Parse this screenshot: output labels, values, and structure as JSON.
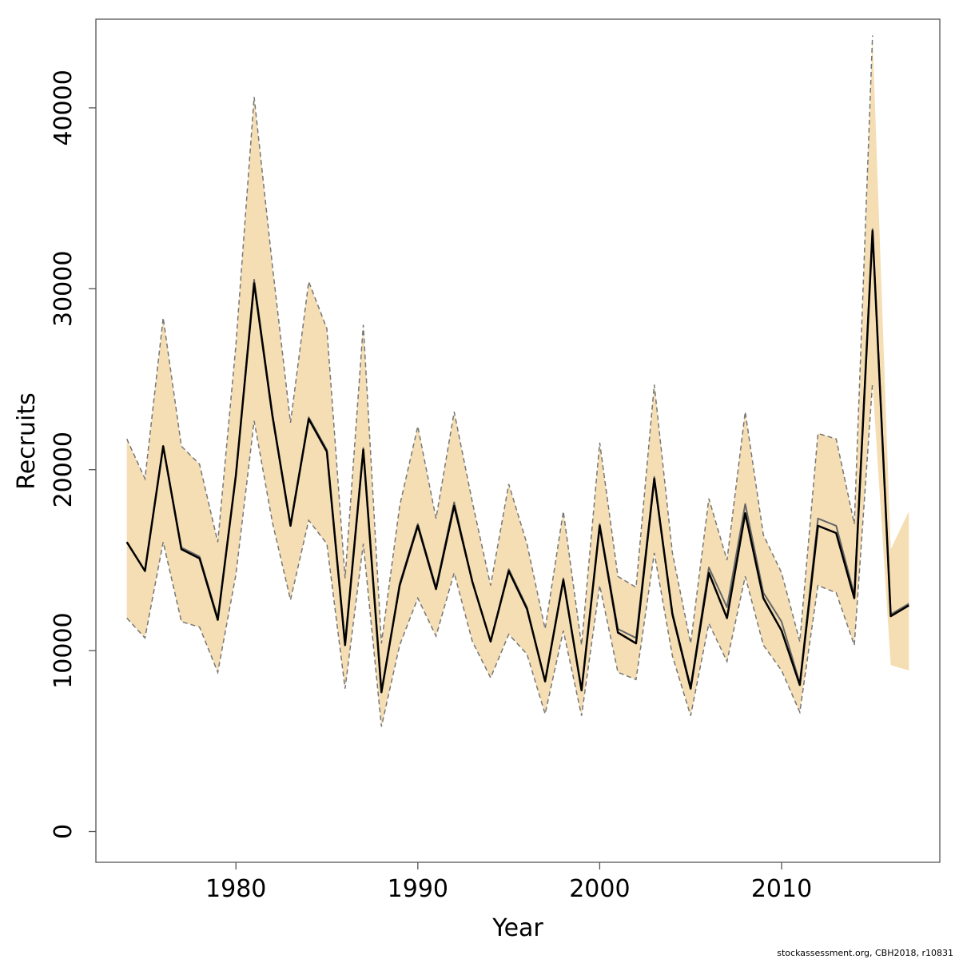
{
  "chart_data": {
    "type": "line",
    "title": "",
    "xlabel": "Year",
    "ylabel": "Recruits",
    "xlim": [
      1972.3,
      2018.7
    ],
    "ylim": [
      -1700,
      44900
    ],
    "x_ticks": [
      1980,
      1990,
      2000,
      2010
    ],
    "y_ticks": [
      0,
      10000,
      20000,
      30000,
      40000
    ],
    "grid": false,
    "band_color": "#f5deb3",
    "line_color": "#000000",
    "x": [
      1974,
      1975,
      1976,
      1977,
      1978,
      1979,
      1980,
      1981,
      1982,
      1983,
      1984,
      1985,
      1986,
      1987,
      1988,
      1989,
      1990,
      1991,
      1992,
      1993,
      1994,
      1995,
      1996,
      1997,
      1998,
      1999,
      2000,
      2001,
      2002,
      2003,
      2004,
      2005,
      2006,
      2007,
      2008,
      2009,
      2010,
      2011,
      2012,
      2013,
      2014,
      2015,
      2016,
      2017
    ],
    "series": [
      {
        "values": [
          16000,
          14400,
          21300,
          15600,
          15100,
          11700,
          19700,
          30300,
          23000,
          16900,
          22800,
          21000,
          10300,
          21100,
          7700,
          13600,
          16900,
          13400,
          18000,
          13800,
          10500,
          14400,
          12300,
          8300,
          13900,
          7800,
          16900,
          11000,
          10400,
          19500,
          12000,
          7900,
          14300,
          11800,
          17600,
          12900,
          11100,
          8100,
          16900,
          16500,
          12900,
          33200,
          11900,
          12500
        ]
      },
      {
        "values": [
          16000,
          14400,
          21300,
          15700,
          15200,
          11800,
          19700,
          30500,
          23100,
          17000,
          22900,
          21100,
          10400,
          21200,
          7700,
          13700,
          17000,
          13500,
          18200,
          13800,
          10500,
          14500,
          12400,
          8300,
          14000,
          7800,
          17000,
          11200,
          10700,
          19600,
          12100,
          8000,
          14600,
          12400,
          18100,
          13200,
          11600,
          8200,
          17300,
          16900,
          13100,
          33300,
          12000,
          12600
        ]
      }
    ],
    "band_lower": [
      11800,
      10700,
      16000,
      11600,
      11300,
      8800,
      14200,
      22700,
      17100,
      12800,
      17200,
      15900,
      7900,
      15900,
      5800,
      10300,
      12900,
      10800,
      14300,
      10500,
      8500,
      10900,
      9800,
      6500,
      11100,
      6400,
      13600,
      8800,
      8400,
      15400,
      9700,
      6400,
      11500,
      9400,
      14100,
      10300,
      8900,
      6600,
      13600,
      13200,
      10300,
      24800,
      9200,
      8900
    ],
    "band_upper": [
      21700,
      19500,
      28400,
      21300,
      20300,
      16000,
      26900,
      40600,
      31300,
      22600,
      30400,
      27800,
      14000,
      28000,
      10400,
      18000,
      22400,
      17300,
      23200,
      18200,
      13600,
      19200,
      15900,
      11200,
      17700,
      10300,
      21500,
      14100,
      13500,
      24700,
      15400,
      10400,
      18400,
      15000,
      23200,
      16400,
      14300,
      10500,
      22000,
      21700,
      17000,
      44000,
      15600,
      17700
    ]
  },
  "credit": "stockassessment.org, CBH2018, r10831"
}
